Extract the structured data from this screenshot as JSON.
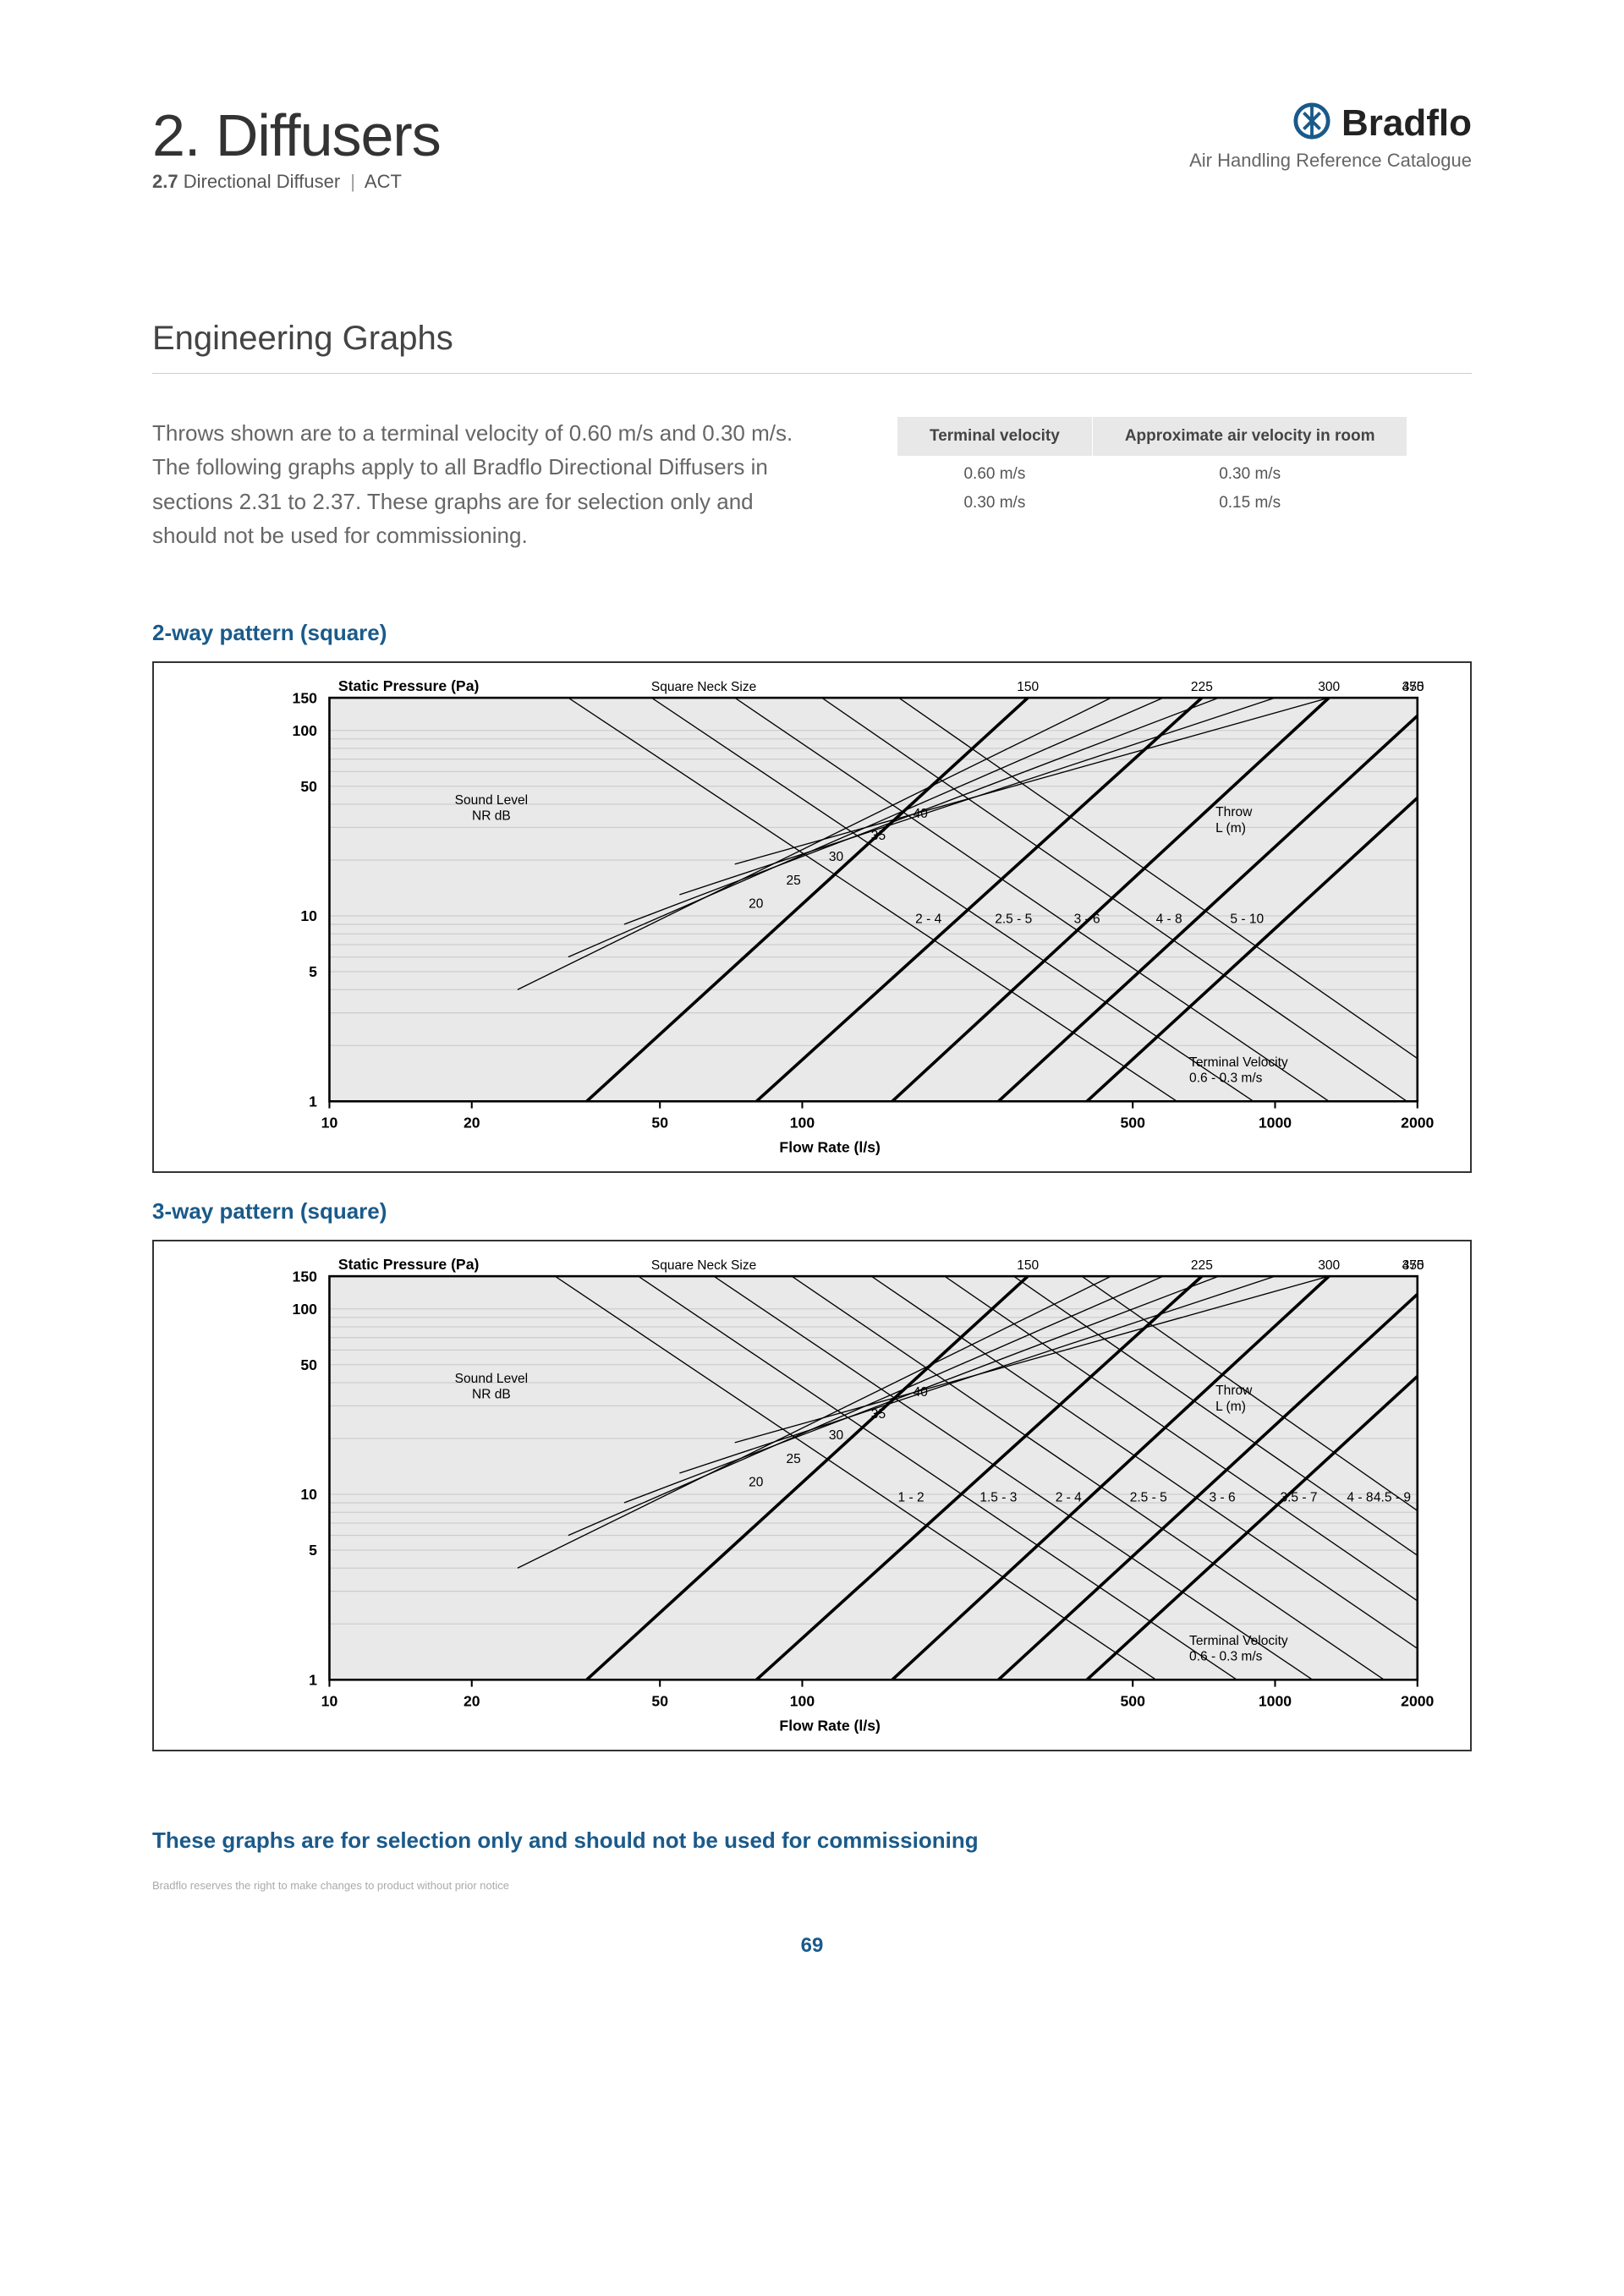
{
  "header": {
    "title": "2. Diffusers",
    "subsection_num": "2.7",
    "subsection_name": "Directional Diffuser",
    "subsection_code": "ACT",
    "brand": "Bradflo",
    "brand_sub": "Air Handling Reference Catalogue",
    "brand_color": "#1a5a8a"
  },
  "section_title": "Engineering Graphs",
  "intro_text": "Throws shown are to a terminal velocity of 0.60 m/s and 0.30 m/s. The following graphs apply to all Bradflo Directional Diffusers in sections 2.31 to 2.37. These graphs are for selection only and should not be used for commissioning.",
  "velocity_table": {
    "headers": [
      "Terminal velocity",
      "Approximate air velocity in room"
    ],
    "rows": [
      [
        "0.60 m/s",
        "0.30 m/s"
      ],
      [
        "0.30 m/s",
        "0.15 m/s"
      ]
    ]
  },
  "charts": [
    {
      "title": "2-way pattern (square)",
      "ylabel": "Static Pressure (Pa)",
      "xlabel": "Flow Rate (l/s)",
      "plot_bg": "#e9e9e9",
      "grid_color": "#c8c8c8",
      "axis_color": "#000000",
      "font_main": 17,
      "font_small": 15,
      "x_ticks": [
        10,
        20,
        50,
        100,
        500,
        1000,
        2000
      ],
      "y_ticks": [
        1,
        5,
        10,
        50,
        100,
        150
      ],
      "x_range": [
        10,
        2000
      ],
      "y_range": [
        1,
        150
      ],
      "scale": "log-log",
      "neck_label": "Square Neck Size",
      "neck_sizes": [
        150,
        225,
        300,
        375,
        450
      ],
      "neck_lines_x_at_y1": [
        35,
        80,
        155,
        260,
        400
      ],
      "neck_lines_x_at_y150": [
        300,
        700,
        1300,
        2200,
        3400
      ],
      "sound_label": "Sound Level\nNR dB",
      "sound_levels": [
        20,
        25,
        30,
        35,
        40
      ],
      "sound_lines_flow": [
        [
          25,
          450
        ],
        [
          32,
          580
        ],
        [
          42,
          760
        ],
        [
          55,
          1000
        ],
        [
          72,
          1300
        ]
      ],
      "sound_lines_sp": [
        [
          4,
          150
        ],
        [
          6,
          150
        ],
        [
          9,
          150
        ],
        [
          13,
          150
        ],
        [
          19,
          150
        ]
      ],
      "throw_label": "Throw\nL  (m)",
      "terminal_label": "Terminal Velocity\n0.6 - 0.3 m/s",
      "throw_labels": [
        "2 - 4",
        "2.5 - 5",
        "3 - 6",
        "4 - 8",
        "5 - 10"
      ],
      "throw_lines_flow": [
        [
          32,
          620
        ],
        [
          48,
          900
        ],
        [
          72,
          1300
        ],
        [
          110,
          1900
        ],
        [
          160,
          2700
        ]
      ],
      "throw_lines_sp": [
        [
          150,
          1
        ],
        [
          150,
          1
        ],
        [
          150,
          1
        ],
        [
          150,
          1
        ],
        [
          150,
          1
        ]
      ]
    },
    {
      "title": "3-way pattern (square)",
      "ylabel": "Static Pressure (Pa)",
      "xlabel": "Flow Rate (l/s)",
      "plot_bg": "#e9e9e9",
      "grid_color": "#c8c8c8",
      "axis_color": "#000000",
      "font_main": 17,
      "font_small": 15,
      "x_ticks": [
        10,
        20,
        50,
        100,
        500,
        1000,
        2000
      ],
      "y_ticks": [
        1,
        5,
        10,
        50,
        100,
        150
      ],
      "x_range": [
        10,
        2000
      ],
      "y_range": [
        1,
        150
      ],
      "scale": "log-log",
      "neck_label": "Square Neck Size",
      "neck_sizes": [
        150,
        225,
        300,
        375,
        450
      ],
      "neck_lines_x_at_y1": [
        35,
        80,
        155,
        260,
        400
      ],
      "neck_lines_x_at_y150": [
        300,
        700,
        1300,
        2200,
        3400
      ],
      "sound_label": "Sound Level\nNR dB",
      "sound_levels": [
        20,
        25,
        30,
        35,
        40
      ],
      "sound_lines_flow": [
        [
          25,
          450
        ],
        [
          32,
          580
        ],
        [
          42,
          760
        ],
        [
          55,
          1000
        ],
        [
          72,
          1300
        ]
      ],
      "sound_lines_sp": [
        [
          4,
          150
        ],
        [
          6,
          150
        ],
        [
          9,
          150
        ],
        [
          13,
          150
        ],
        [
          19,
          150
        ]
      ],
      "throw_label": "Throw\nL  (m)",
      "terminal_label": "Terminal Velocity\n0.6 - 0.3 m/s",
      "throw_labels": [
        "1 - 2",
        "1.5 - 3",
        "2 - 4",
        "2.5 - 5",
        "3 - 6",
        "3.5 - 7",
        "4 - 8",
        "4.5 - 9"
      ],
      "throw_lines_flow": [
        [
          30,
          560
        ],
        [
          45,
          830
        ],
        [
          65,
          1200
        ],
        [
          95,
          1700
        ],
        [
          140,
          2500
        ],
        [
          200,
          3500
        ],
        [
          280,
          4800
        ],
        [
          390,
          6500
        ]
      ],
      "throw_lines_sp": [
        [
          150,
          1
        ],
        [
          150,
          1
        ],
        [
          150,
          1
        ],
        [
          150,
          1
        ],
        [
          150,
          1
        ],
        [
          150,
          1
        ],
        [
          150,
          1
        ],
        [
          150,
          1
        ]
      ]
    }
  ],
  "footnote": "These graphs are for selection only and should not be used for commissioning",
  "disclaimer": "Bradflo reserves the right to make changes to product without prior notice",
  "page_number": "69",
  "colors": {
    "accent": "#1a5a8a",
    "text": "#555555",
    "border": "#333333"
  }
}
